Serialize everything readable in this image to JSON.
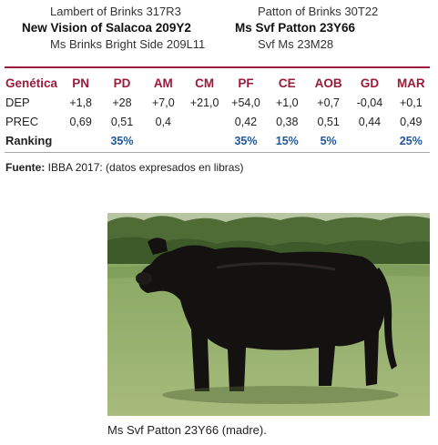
{
  "pedigree": {
    "left_top": "Lambert of Brinks 317R3",
    "left_mid": "New Vision of Salacoa 209Y2",
    "left_bot": "Ms Brinks Bright Side 209L11",
    "right_top": "Patton of Brinks 30T22",
    "right_mid": "Ms Svf Patton 23Y66",
    "right_bot": "Svf Ms 23M28"
  },
  "table": {
    "header_label": "Genética",
    "columns": [
      "PN",
      "PD",
      "AM",
      "CM",
      "PF",
      "CE",
      "AOB",
      "GD",
      "MAR"
    ],
    "rows": [
      {
        "label": "DEP",
        "values": [
          "+1,8",
          "+28",
          "+7,0",
          "+21,0",
          "+54,0",
          "+1,0",
          "+0,7",
          "-0,04",
          "+0,1"
        ]
      },
      {
        "label": "PREC",
        "values": [
          "0,69",
          "0,51",
          "0,4",
          "",
          "0,42",
          "0,38",
          "0,51",
          "0,44",
          "0,49"
        ]
      },
      {
        "label": "Ranking",
        "values": [
          "",
          "35%",
          "",
          "",
          "35%",
          "15%",
          "5%",
          "",
          "25%"
        ]
      }
    ]
  },
  "source": {
    "label": "Fuente:",
    "text": " IBBA 2017: (datos expresados en libras)"
  },
  "photo": {
    "caption": "Ms Svf Patton 23Y66 (madre).",
    "icon": "black-cow-photo"
  },
  "colors": {
    "accent": "#9b1c3a",
    "ranking": "#1f5799"
  }
}
